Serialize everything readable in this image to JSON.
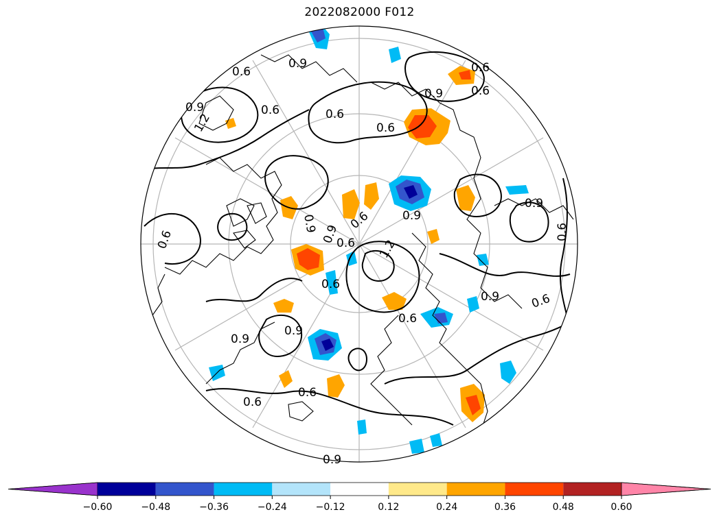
{
  "title": "2022082000 F012",
  "colorbar": {
    "levels": [
      -0.6,
      -0.48,
      -0.36,
      -0.24,
      -0.12,
      0.12,
      0.24,
      0.36,
      0.48,
      0.6
    ],
    "tick_labels": [
      "−0.60",
      "−0.48",
      "−0.36",
      "−0.24",
      "−0.12",
      "0.12",
      "0.24",
      "0.36",
      "0.48",
      "0.60"
    ],
    "colors": [
      "#9933cc",
      "#000099",
      "#3355cc",
      "#00bbf5",
      "#b3e4fa",
      "#ffffff",
      "#ffe98a",
      "#ffa500",
      "#ff4500",
      "#b22222",
      "#ff85a8"
    ],
    "extend": "both"
  },
  "contour_labels": [
    "0.6",
    "0.9",
    "0.6",
    "0.9",
    "0.6",
    "0.6",
    "0.9",
    "0.6",
    "0.6",
    "0.9",
    "0.9",
    "0.6",
    "0.9",
    "0.6",
    "0.6",
    "1.2",
    "0.9",
    "0.6",
    "0.6",
    "0.9",
    "0.6",
    "0.6",
    "0.9",
    "0.6",
    "0.9",
    "0.6",
    "0.9",
    "1.2"
  ],
  "map": {
    "projection": "north-polar-stereographic",
    "contour_color": "#000000",
    "graticule_color": "#b0b0b0"
  }
}
